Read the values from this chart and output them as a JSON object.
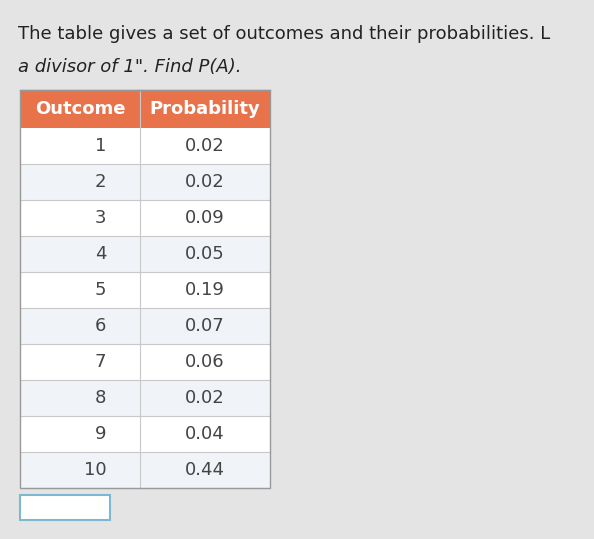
{
  "title_line1": "The table gives a set of outcomes and their probabilities. L",
  "title_line2": "a divisor of 1\". Find P(A).",
  "col_headers": [
    "Outcome",
    "Probability"
  ],
  "outcomes": [
    1,
    2,
    3,
    4,
    5,
    6,
    7,
    8,
    9,
    10
  ],
  "probabilities": [
    "0.02",
    "0.02",
    "0.09",
    "0.05",
    "0.19",
    "0.07",
    "0.06",
    "0.02",
    "0.04",
    "0.44"
  ],
  "header_bg_color": "#E8724A",
  "header_text_color": "#FFFFFF",
  "row_bg_color": "#FFFFFF",
  "row_alt_bg_color": "#F0F4F8",
  "row_text_color": "#444444",
  "border_color": "#C8C8C8",
  "table_border_color": "#999999",
  "bg_color": "#E4E4E4",
  "title_color": "#222222",
  "answer_box_border_color": "#7EB8D0",
  "answer_box_fill_color": "#FFFFFF",
  "fig_width": 5.94,
  "fig_height": 5.39,
  "dpi": 100,
  "title_fontsize": 13,
  "header_fontsize": 13,
  "cell_fontsize": 13
}
